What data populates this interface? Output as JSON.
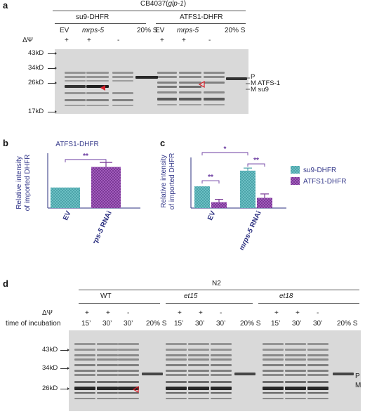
{
  "panel_a": {
    "label": "a",
    "strain": "CB4037(glp-1)",
    "strain_prefix": "CB4037(",
    "strain_italic": "glp-1",
    "strain_suffix": ")",
    "groups": [
      "su9-DHFR",
      "ATFS1-DHFR"
    ],
    "lanes": [
      "EV",
      "mrps-5",
      "",
      "20% S",
      "EV",
      "mrps-5",
      "",
      "20% S"
    ],
    "dpsi_label": "ΔΨ",
    "dpsi": [
      "+",
      "+",
      "-",
      "",
      "+",
      "+",
      "-",
      ""
    ],
    "mw_markers": [
      "43kD",
      "34kD",
      "26kD",
      "17kD"
    ],
    "band_labels": [
      "P",
      "M ATFS-1",
      "M su9"
    ]
  },
  "panel_b": {
    "label": "b",
    "chart_data": {
      "type": "bar",
      "title": "ATFS1-DHFR",
      "ylabel": "Relative intensity of imported DHFR",
      "ylabel_lines": [
        "Relative intensity",
        "of imported DHFR"
      ],
      "categories": [
        "EV",
        "mrps-5 RNAi"
      ],
      "category_parts": [
        [
          "EV",
          ""
        ],
        [
          "mrps-5",
          " RNAi"
        ]
      ],
      "values": [
        1.0,
        2.0
      ],
      "errors": [
        0,
        0.22
      ],
      "ylim": [
        0,
        2.6
      ],
      "significance": [
        {
          "between": [
            0,
            1
          ],
          "label": "**"
        }
      ],
      "colors": [
        "#4ca3a9",
        "#7a3a95"
      ]
    }
  },
  "panel_c": {
    "label": "c",
    "chart_data": {
      "type": "bar",
      "ylabel": "Relative intensity of imported DHFR",
      "ylabel_lines": [
        "Relative intensity",
        "of imported DHFR"
      ],
      "categories": [
        "EV",
        "mrps-5 RNAi"
      ],
      "category_parts": [
        [
          "EV",
          ""
        ],
        [
          "mrps-5",
          " RNAi"
        ]
      ],
      "series": [
        {
          "name": "su9-DHFR",
          "values": [
            1.0,
            1.72
          ],
          "errors": [
            0,
            0.12
          ],
          "color": "#4ca3a9"
        },
        {
          "name": "ATFS1-DHFR",
          "values": [
            0.27,
            0.47
          ],
          "errors": [
            0.13,
            0.18
          ],
          "color": "#7a3a95"
        }
      ],
      "ylim": [
        0,
        2.2
      ],
      "legend": "right",
      "significance": [
        {
          "label": "**"
        },
        {
          "label": "**"
        },
        {
          "label": "*"
        }
      ]
    }
  },
  "panel_d": {
    "label": "d",
    "strain": "N2",
    "groups": [
      "WT",
      "et15",
      "et18"
    ],
    "dpsi_label": "ΔΨ",
    "time_label": "time of incubation",
    "dpsi": [
      "+",
      "+",
      "-",
      "",
      "+",
      "+",
      "-",
      "",
      "+",
      "+",
      "-",
      ""
    ],
    "times": [
      "15’",
      "30’",
      "30’",
      "20% S",
      "15’",
      "30’",
      "30’",
      "20% S",
      "15’",
      "30’",
      "30’",
      "20% S"
    ],
    "mw_markers": [
      "43kD",
      "34kD",
      "26kD"
    ],
    "band_labels": [
      "P",
      "M"
    ]
  }
}
